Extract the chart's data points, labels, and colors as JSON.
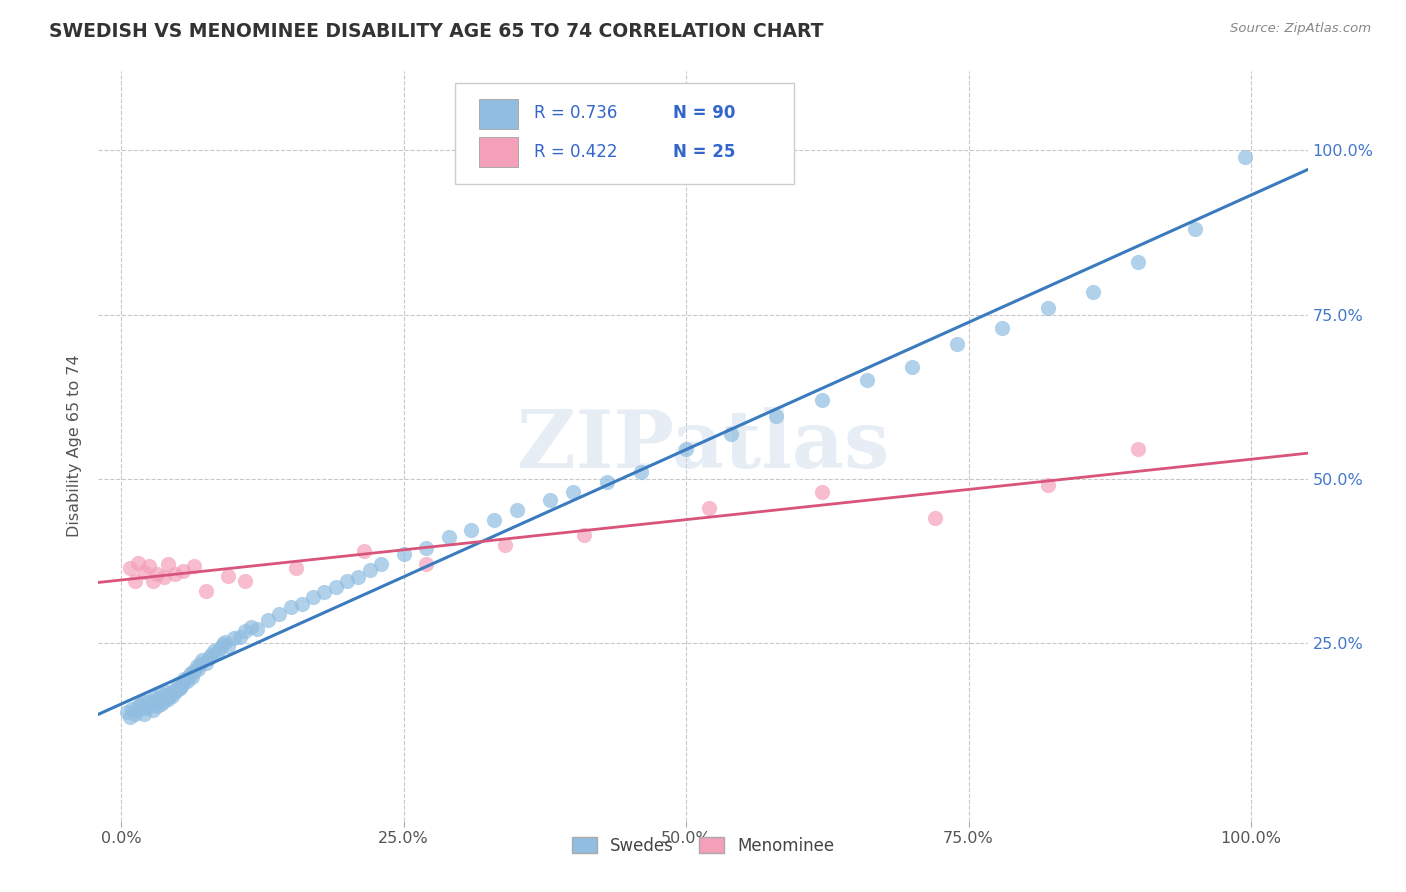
{
  "title": "SWEDISH VS MENOMINEE DISABILITY AGE 65 TO 74 CORRELATION CHART",
  "source": "Source: ZipAtlas.com",
  "ylabel": "Disability Age 65 to 74",
  "xlim": [
    -0.02,
    1.05
  ],
  "ylim": [
    -0.02,
    1.12
  ],
  "xtick_vals": [
    0.0,
    0.25,
    0.5,
    0.75,
    1.0
  ],
  "xtick_labels": [
    "0.0%",
    "25.0%",
    "50.0%",
    "75.0%",
    "100.0%"
  ],
  "ytick_vals": [
    0.25,
    0.5,
    0.75,
    1.0
  ],
  "ytick_labels": [
    "25.0%",
    "50.0%",
    "75.0%",
    "100.0%"
  ],
  "swedes_R": 0.736,
  "swedes_N": 90,
  "menominee_R": 0.422,
  "menominee_N": 25,
  "swedes_color": "#90bde0",
  "menominee_color": "#f4a0b8",
  "line_swedes_color": "#3a7bbf",
  "line_menominee_color": "#d9547a",
  "watermark": "ZIPatlas",
  "legend_label_swedes": "Swedes",
  "legend_label_menominee": "Menominee",
  "swedes_x": [
    0.005,
    0.008,
    0.01,
    0.012,
    0.015,
    0.015,
    0.018,
    0.02,
    0.02,
    0.022,
    0.025,
    0.025,
    0.028,
    0.03,
    0.03,
    0.032,
    0.033,
    0.035,
    0.035,
    0.038,
    0.04,
    0.04,
    0.042,
    0.043,
    0.045,
    0.046,
    0.048,
    0.05,
    0.05,
    0.052,
    0.053,
    0.055,
    0.056,
    0.058,
    0.06,
    0.062,
    0.063,
    0.065,
    0.067,
    0.068,
    0.07,
    0.072,
    0.075,
    0.078,
    0.08,
    0.082,
    0.085,
    0.088,
    0.09,
    0.092,
    0.095,
    0.1,
    0.105,
    0.11,
    0.115,
    0.12,
    0.13,
    0.14,
    0.15,
    0.16,
    0.17,
    0.18,
    0.19,
    0.2,
    0.21,
    0.22,
    0.23,
    0.25,
    0.27,
    0.29,
    0.31,
    0.33,
    0.35,
    0.38,
    0.4,
    0.43,
    0.46,
    0.5,
    0.54,
    0.58,
    0.62,
    0.66,
    0.7,
    0.74,
    0.78,
    0.82,
    0.86,
    0.9,
    0.95,
    0.995
  ],
  "swedes_y": [
    0.145,
    0.138,
    0.15,
    0.142,
    0.148,
    0.155,
    0.158,
    0.143,
    0.16,
    0.152,
    0.155,
    0.162,
    0.148,
    0.16,
    0.168,
    0.155,
    0.165,
    0.158,
    0.172,
    0.162,
    0.168,
    0.175,
    0.165,
    0.172,
    0.17,
    0.178,
    0.175,
    0.18,
    0.188,
    0.182,
    0.185,
    0.19,
    0.195,
    0.192,
    0.2,
    0.205,
    0.198,
    0.208,
    0.215,
    0.21,
    0.218,
    0.225,
    0.22,
    0.228,
    0.232,
    0.238,
    0.235,
    0.242,
    0.248,
    0.252,
    0.245,
    0.258,
    0.26,
    0.268,
    0.275,
    0.272,
    0.285,
    0.295,
    0.305,
    0.31,
    0.32,
    0.328,
    0.335,
    0.345,
    0.35,
    0.362,
    0.37,
    0.385,
    0.395,
    0.412,
    0.422,
    0.438,
    0.452,
    0.468,
    0.48,
    0.495,
    0.51,
    0.545,
    0.568,
    0.595,
    0.62,
    0.65,
    0.67,
    0.705,
    0.73,
    0.76,
    0.785,
    0.83,
    0.88,
    0.99
  ],
  "menominee_x": [
    0.008,
    0.012,
    0.015,
    0.02,
    0.025,
    0.028,
    0.032,
    0.038,
    0.042,
    0.048,
    0.055,
    0.065,
    0.075,
    0.095,
    0.11,
    0.155,
    0.215,
    0.27,
    0.34,
    0.41,
    0.52,
    0.62,
    0.72,
    0.82,
    0.9
  ],
  "menominee_y": [
    0.365,
    0.345,
    0.372,
    0.358,
    0.368,
    0.345,
    0.355,
    0.35,
    0.37,
    0.355,
    0.36,
    0.368,
    0.33,
    0.352,
    0.345,
    0.365,
    0.39,
    0.37,
    0.4,
    0.415,
    0.455,
    0.48,
    0.44,
    0.49,
    0.545
  ]
}
